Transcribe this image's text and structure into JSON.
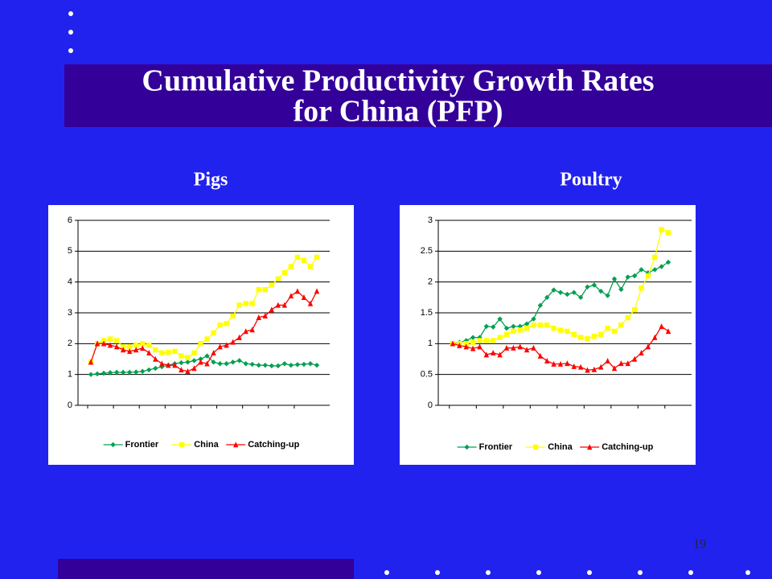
{
  "slide": {
    "title_line1": "Cumulative Productivity Growth Rates",
    "title_line2": "for China (PFP)",
    "page_number": "19"
  },
  "chart_data": [
    {
      "type": "line",
      "title": "Pigs",
      "categories": [
        null,
        null,
        null,
        null,
        null,
        null,
        null,
        null,
        null,
        null,
        null,
        null,
        null,
        null,
        null,
        null,
        null,
        null,
        null,
        null,
        null,
        null,
        null,
        null,
        null,
        null,
        null,
        null,
        null,
        null,
        null,
        null,
        null,
        null,
        null,
        null
      ],
      "ylim": [
        0,
        6
      ],
      "yticks": [
        0,
        1,
        2,
        3,
        4,
        5,
        6
      ],
      "grid": true,
      "legend": "bottom",
      "series": [
        {
          "name": "Frontier",
          "color": "#00a050",
          "marker": "diamond",
          "values": [
            1.0,
            1.02,
            1.04,
            1.06,
            1.07,
            1.07,
            1.07,
            1.08,
            1.1,
            1.15,
            1.2,
            1.25,
            1.3,
            1.35,
            1.38,
            1.4,
            1.45,
            1.5,
            1.6,
            1.4,
            1.35,
            1.35,
            1.4,
            1.45,
            1.35,
            1.33,
            1.3,
            1.3,
            1.28,
            1.28,
            1.35,
            1.3,
            1.32,
            1.33,
            1.35,
            1.3
          ]
        },
        {
          "name": "China",
          "color": "#ffff00",
          "marker": "square",
          "values": [
            1.4,
            2.0,
            2.1,
            2.15,
            2.1,
            1.9,
            1.9,
            1.95,
            2.0,
            1.95,
            1.8,
            1.7,
            1.72,
            1.75,
            1.6,
            1.55,
            1.7,
            2.0,
            2.15,
            2.35,
            2.6,
            2.65,
            2.9,
            3.25,
            3.3,
            3.3,
            3.75,
            3.75,
            3.9,
            4.1,
            4.3,
            4.5,
            4.8,
            4.7,
            4.5,
            4.8
          ]
        },
        {
          "name": "Catching-up",
          "color": "#ff0000",
          "marker": "triangle",
          "values": [
            1.4,
            2.0,
            2.0,
            1.95,
            1.9,
            1.8,
            1.75,
            1.8,
            1.85,
            1.7,
            1.5,
            1.35,
            1.3,
            1.3,
            1.15,
            1.1,
            1.2,
            1.4,
            1.35,
            1.7,
            1.9,
            1.95,
            2.05,
            2.2,
            2.4,
            2.45,
            2.85,
            2.9,
            3.1,
            3.25,
            3.25,
            3.55,
            3.7,
            3.5,
            3.3,
            3.7
          ]
        }
      ]
    },
    {
      "type": "line",
      "title": "Poultry",
      "categories": [
        null,
        null,
        null,
        null,
        null,
        null,
        null,
        null,
        null,
        null,
        null,
        null,
        null,
        null,
        null,
        null,
        null,
        null,
        null,
        null,
        null,
        null,
        null,
        null,
        null,
        null,
        null,
        null,
        null,
        null,
        null,
        null,
        null
      ],
      "ylim": [
        0,
        3
      ],
      "yticks": [
        0,
        0.5,
        1,
        1.5,
        2,
        2.5,
        3
      ],
      "grid": true,
      "legend": "bottom",
      "series": [
        {
          "name": "Frontier",
          "color": "#00a050",
          "marker": "diamond",
          "values": [
            1.0,
            1.02,
            1.05,
            1.1,
            1.1,
            1.28,
            1.27,
            1.4,
            1.25,
            1.28,
            1.28,
            1.32,
            1.4,
            1.62,
            1.75,
            1.87,
            1.83,
            1.8,
            1.83,
            1.75,
            1.92,
            1.95,
            1.85,
            1.78,
            2.05,
            1.88,
            2.08,
            2.1,
            2.2,
            2.15,
            2.2,
            2.25,
            2.32
          ]
        },
        {
          "name": "China",
          "color": "#ffff00",
          "marker": "square",
          "values": [
            1.0,
            1.0,
            1.0,
            1.02,
            1.05,
            1.05,
            1.05,
            1.1,
            1.15,
            1.2,
            1.22,
            1.25,
            1.3,
            1.3,
            1.3,
            1.25,
            1.22,
            1.2,
            1.15,
            1.1,
            1.08,
            1.12,
            1.15,
            1.25,
            1.2,
            1.3,
            1.42,
            1.55,
            1.9,
            2.1,
            2.4,
            2.85,
            2.8
          ]
        },
        {
          "name": "Catching-up",
          "color": "#ff0000",
          "marker": "triangle",
          "values": [
            1.0,
            0.97,
            0.95,
            0.92,
            0.95,
            0.82,
            0.85,
            0.82,
            0.93,
            0.93,
            0.95,
            0.9,
            0.93,
            0.8,
            0.72,
            0.67,
            0.67,
            0.68,
            0.63,
            0.62,
            0.57,
            0.58,
            0.62,
            0.72,
            0.6,
            0.68,
            0.68,
            0.75,
            0.85,
            0.95,
            1.1,
            1.28,
            1.2
          ]
        }
      ]
    }
  ]
}
